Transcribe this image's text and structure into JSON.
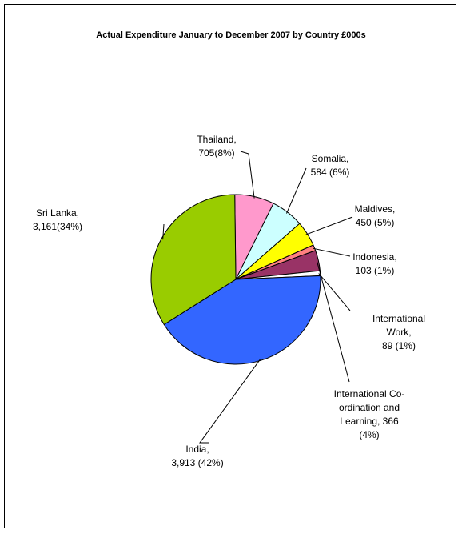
{
  "chart_data": {
    "type": "pie",
    "title": "Actual Expenditure January to December 2007 by Country £000s",
    "slices": [
      {
        "name": "Thailand",
        "value": 705,
        "percent": 8,
        "color": "#ff99cc",
        "label_lines": [
          "Thailand,",
          "705(8%)"
        ]
      },
      {
        "name": "Somalia",
        "value": 584,
        "percent": 6,
        "color": "#ccffff",
        "label_lines": [
          "Somalia,",
          "584 (6%)"
        ]
      },
      {
        "name": "Maldives",
        "value": 450,
        "percent": 5,
        "color": "#ffff00",
        "label_lines": [
          "Maldives,",
          "450 (5%)"
        ]
      },
      {
        "name": "Indonesia",
        "value": 103,
        "percent": 1,
        "color": "#ff8080",
        "label_lines": [
          "Indonesia,",
          "103 (1%)"
        ]
      },
      {
        "name": "International Co-ordination and Learning",
        "value": 366,
        "percent": 4,
        "color": "#993366",
        "label_lines": [
          "International Co-",
          "ordination and",
          "Learning,  366",
          "(4%)"
        ]
      },
      {
        "name": "International Work",
        "value": 89,
        "percent": 1,
        "color": "#ffffff",
        "label_lines": [
          "International",
          "Work,",
          "89 (1%)"
        ]
      },
      {
        "name": "India",
        "value": 3913,
        "percent": 42,
        "color": "#3366ff",
        "label_lines": [
          "India,",
          "3,913 (42%)"
        ]
      },
      {
        "name": "Sri Lanka",
        "value": 3161,
        "percent": 34,
        "color": "#99cc00",
        "label_lines": [
          "Sri Lanka,",
          "3,161(34%)"
        ]
      }
    ]
  }
}
